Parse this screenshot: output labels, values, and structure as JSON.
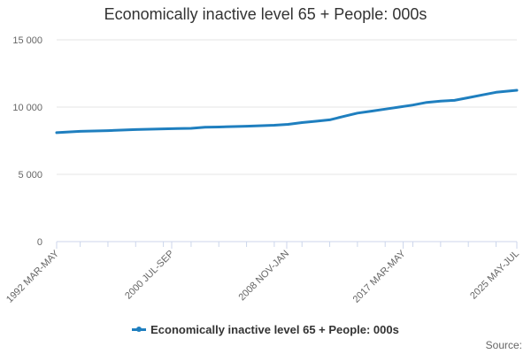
{
  "colors": {
    "series": "#1f7fbf",
    "grid": "#e6e6e6",
    "axis": "#ccd6eb"
  },
  "footer": {
    "source_label": "Source:"
  },
  "chart_data": {
    "type": "line",
    "title": "Economically inactive level 65 + People: 000s",
    "xlabel": "",
    "ylabel": "",
    "ylim": [
      0,
      15000
    ],
    "y_ticks": [
      0,
      5000,
      10000,
      15000
    ],
    "y_tick_labels": [
      "0",
      "5 000",
      "10 000",
      "15 000"
    ],
    "x_tick_labels": [
      "1992 MAR-MAY",
      "2000 JUL-SEP",
      "2008 NOV-JAN",
      "2017 MAR-MAY",
      "2025 MAY-JUL"
    ],
    "x_tick_years": [
      1992.3,
      2000.6,
      2008.9,
      2017.3,
      2025.5
    ],
    "legend": {
      "position": "bottom-center"
    },
    "grid": {
      "y": true,
      "x": false
    },
    "series": [
      {
        "name": "Economically inactive level 65 + People: 000s",
        "points": [
          [
            1992.3,
            8100
          ],
          [
            1994.0,
            8200
          ],
          [
            1996.0,
            8250
          ],
          [
            1998.0,
            8330
          ],
          [
            2000.0,
            8380
          ],
          [
            2001.0,
            8400
          ],
          [
            2002.0,
            8420
          ],
          [
            2003.0,
            8500
          ],
          [
            2004.0,
            8520
          ],
          [
            2006.0,
            8580
          ],
          [
            2008.0,
            8650
          ],
          [
            2009.0,
            8720
          ],
          [
            2010.0,
            8850
          ],
          [
            2011.0,
            8950
          ],
          [
            2012.0,
            9050
          ],
          [
            2013.0,
            9300
          ],
          [
            2014.0,
            9550
          ],
          [
            2015.0,
            9700
          ],
          [
            2016.0,
            9850
          ],
          [
            2017.0,
            10000
          ],
          [
            2018.0,
            10150
          ],
          [
            2019.0,
            10350
          ],
          [
            2020.0,
            10450
          ],
          [
            2021.0,
            10500
          ],
          [
            2022.0,
            10700
          ],
          [
            2023.0,
            10900
          ],
          [
            2024.0,
            11100
          ],
          [
            2025.0,
            11200
          ],
          [
            2025.5,
            11250
          ]
        ]
      }
    ]
  }
}
